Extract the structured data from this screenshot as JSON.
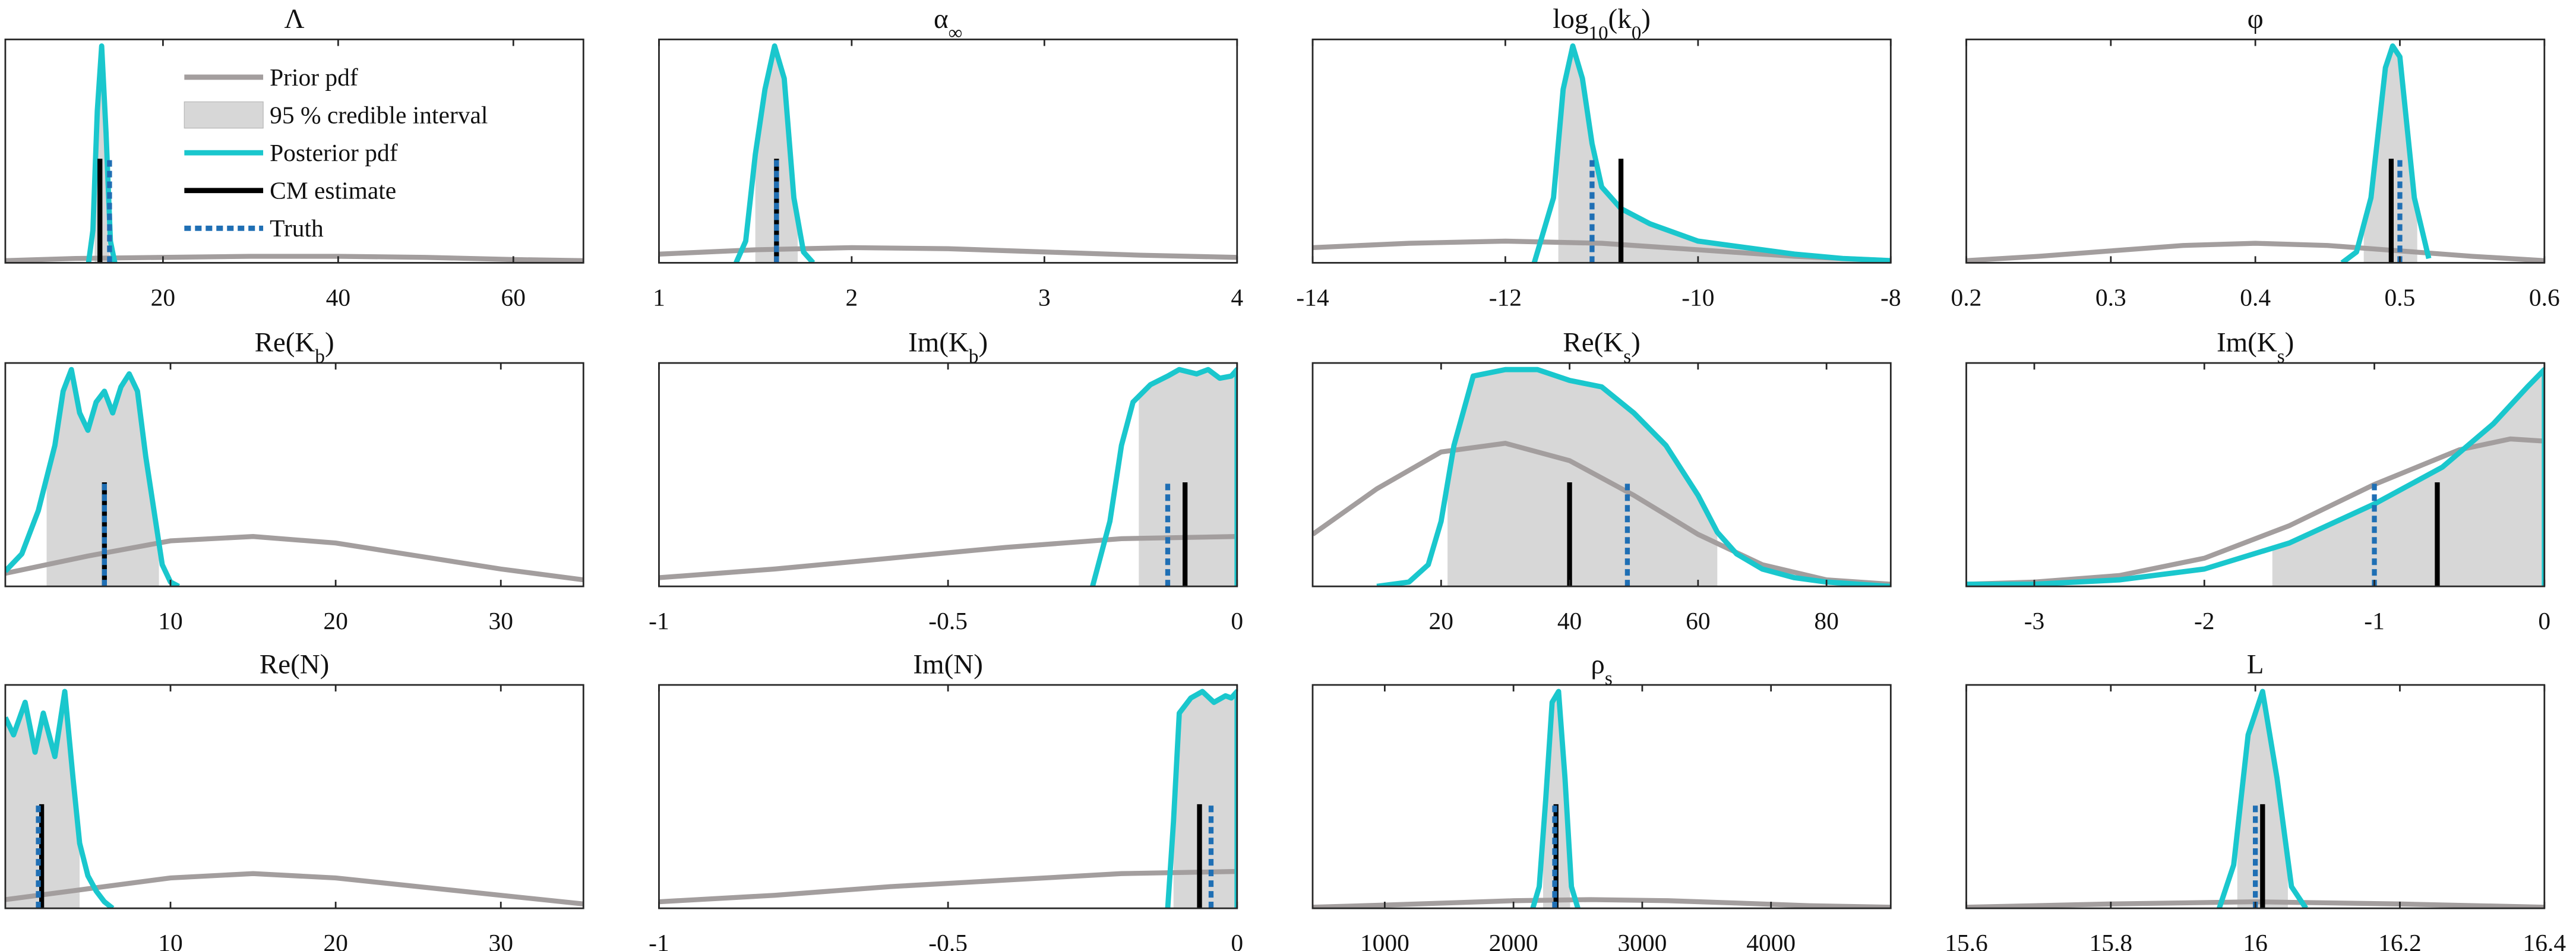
{
  "chart_data": [
    {
      "type": "density",
      "title": [
        {
          "text": "Λ"
        }
      ],
      "xlim": [
        2,
        68
      ],
      "xticks": [
        20,
        40,
        60
      ],
      "ylim": [
        0,
        1
      ],
      "prior": {
        "x": [
          2,
          10,
          20,
          30,
          40,
          50,
          60,
          68
        ],
        "y": [
          0.01,
          0.02,
          0.025,
          0.03,
          0.03,
          0.025,
          0.015,
          0.01
        ]
      },
      "posterior": {
        "x": [
          11.5,
          12,
          12.5,
          13,
          13.5,
          14,
          14.5
        ],
        "y": [
          0,
          0.15,
          0.7,
          1.0,
          0.6,
          0.1,
          0
        ]
      },
      "interval": [
        12.2,
        13.9
      ],
      "cm_estimate": 12.8,
      "truth": 13.9,
      "legend": {
        "prior": {
          "name": "Prior pdf",
          "color": "#a39e9e"
        },
        "interval": {
          "name": "95 % credible interval",
          "color": "#d7d7d7"
        },
        "posterior": {
          "name": "Posterior pdf",
          "color": "#1ac7cd"
        },
        "cm_estimate": {
          "name": "CM estimate",
          "color": "#000000"
        },
        "truth": {
          "name": "Truth",
          "color": "#1f6fb4"
        }
      }
    },
    {
      "type": "density",
      "title": [
        {
          "text": "α"
        },
        {
          "text": "∞",
          "sub": true
        }
      ],
      "xlim": [
        1,
        4
      ],
      "xticks": [
        1,
        2,
        3,
        4
      ],
      "ylim": [
        0,
        1
      ],
      "prior": {
        "x": [
          1,
          1.5,
          2,
          2.5,
          3,
          3.5,
          4
        ],
        "y": [
          0.04,
          0.06,
          0.07,
          0.065,
          0.05,
          0.035,
          0.025
        ]
      },
      "posterior": {
        "x": [
          1.4,
          1.45,
          1.5,
          1.55,
          1.6,
          1.65,
          1.7,
          1.75,
          1.8
        ],
        "y": [
          0,
          0.1,
          0.5,
          0.8,
          1.0,
          0.85,
          0.3,
          0.05,
          0
        ]
      },
      "interval": [
        1.5,
        1.72
      ],
      "cm_estimate": 1.61,
      "truth": 1.61
    },
    {
      "type": "density",
      "title": [
        {
          "text": "log"
        },
        {
          "text": "10",
          "sub": true
        },
        {
          "text": "(k"
        },
        {
          "text": "0",
          "sub": true
        },
        {
          "text": ")"
        }
      ],
      "xlim": [
        -14,
        -8
      ],
      "xticks": [
        -14,
        -12,
        -10,
        -8
      ],
      "ylim": [
        0,
        1
      ],
      "prior": {
        "x": [
          -14,
          -13,
          -12,
          -11,
          -10,
          -9,
          -8
        ],
        "y": [
          0.07,
          0.09,
          0.1,
          0.09,
          0.06,
          0.03,
          0.01
        ]
      },
      "posterior": {
        "x": [
          -11.7,
          -11.5,
          -11.4,
          -11.3,
          -11.2,
          -11.1,
          -11,
          -10.8,
          -10.5,
          -10,
          -9.5,
          -9,
          -8.5,
          -8
        ],
        "y": [
          0,
          0.3,
          0.8,
          1.0,
          0.85,
          0.55,
          0.35,
          0.25,
          0.18,
          0.1,
          0.07,
          0.04,
          0.02,
          0.01
        ]
      },
      "interval": [
        -11.45,
        -8.3
      ],
      "cm_estimate": -10.8,
      "truth": -11.1
    },
    {
      "type": "density",
      "title": [
        {
          "text": "φ"
        }
      ],
      "xlim": [
        0.2,
        0.6
      ],
      "xticks": [
        0.2,
        0.3,
        0.4,
        0.5,
        0.6
      ],
      "ylim": [
        0,
        1
      ],
      "prior": {
        "x": [
          0.2,
          0.25,
          0.3,
          0.35,
          0.4,
          0.45,
          0.5,
          0.55,
          0.6
        ],
        "y": [
          0.01,
          0.03,
          0.055,
          0.08,
          0.09,
          0.08,
          0.055,
          0.03,
          0.01
        ]
      },
      "posterior": {
        "x": [
          0.46,
          0.47,
          0.48,
          0.49,
          0.495,
          0.5,
          0.51,
          0.52
        ],
        "y": [
          0,
          0.05,
          0.3,
          0.9,
          1.0,
          0.95,
          0.3,
          0.02
        ]
      },
      "interval": [
        0.475,
        0.512
      ],
      "cm_estimate": 0.494,
      "truth": 0.5
    },
    {
      "type": "density",
      "title": [
        {
          "text": "Re(K"
        },
        {
          "text": "b",
          "sub": true
        },
        {
          "text": ")"
        }
      ],
      "xlim": [
        0,
        35
      ],
      "xticks": [
        10,
        20,
        30
      ],
      "ylim": [
        0,
        1
      ],
      "prior": {
        "x": [
          0,
          5,
          10,
          15,
          20,
          25,
          30,
          35
        ],
        "y": [
          0.06,
          0.14,
          0.21,
          0.23,
          0.2,
          0.14,
          0.08,
          0.03
        ]
      },
      "posterior": {
        "x": [
          0,
          1,
          2,
          3,
          3.5,
          4,
          4.5,
          5,
          5.5,
          6,
          6.5,
          7,
          7.5,
          8,
          8.5,
          9,
          9.5,
          10,
          10.5
        ],
        "y": [
          0.07,
          0.15,
          0.35,
          0.65,
          0.9,
          1.0,
          0.8,
          0.72,
          0.85,
          0.9,
          0.8,
          0.92,
          0.98,
          0.9,
          0.6,
          0.35,
          0.1,
          0.02,
          0
        ]
      },
      "interval": [
        2.5,
        9.3
      ],
      "cm_estimate": 6,
      "truth": 6
    },
    {
      "type": "density",
      "title": [
        {
          "text": "Im(K"
        },
        {
          "text": "b",
          "sub": true
        },
        {
          "text": ")"
        }
      ],
      "xlim": [
        -1,
        0
      ],
      "xticks": [
        -1,
        -0.5,
        0
      ],
      "ylim": [
        0,
        1
      ],
      "prior": {
        "x": [
          -1,
          -0.8,
          -0.6,
          -0.4,
          -0.2,
          0
        ],
        "y": [
          0.04,
          0.08,
          0.13,
          0.18,
          0.22,
          0.23
        ]
      },
      "posterior": {
        "x": [
          -0.25,
          -0.22,
          -0.2,
          -0.18,
          -0.15,
          -0.12,
          -0.1,
          -0.07,
          -0.05,
          -0.03,
          -0.01,
          0,
          0
        ],
        "y": [
          0,
          0.3,
          0.65,
          0.85,
          0.93,
          0.97,
          1.0,
          0.98,
          1.0,
          0.96,
          0.97,
          1.0,
          0
        ]
      },
      "interval": [
        -0.17,
        0
      ],
      "cm_estimate": -0.09,
      "truth": -0.12
    },
    {
      "type": "density",
      "title": [
        {
          "text": "Re(K"
        },
        {
          "text": "s",
          "sub": true
        },
        {
          "text": ")"
        }
      ],
      "xlim": [
        0,
        90
      ],
      "xticks": [
        20,
        40,
        60,
        80
      ],
      "ylim": [
        0,
        1
      ],
      "prior": {
        "x": [
          0,
          10,
          20,
          30,
          40,
          50,
          60,
          70,
          80,
          90
        ],
        "y": [
          0.24,
          0.45,
          0.62,
          0.66,
          0.58,
          0.42,
          0.24,
          0.1,
          0.03,
          0.01
        ]
      },
      "posterior": {
        "x": [
          10,
          15,
          18,
          20,
          22,
          25,
          30,
          35,
          40,
          45,
          50,
          55,
          60,
          63,
          66,
          70,
          75,
          80,
          85,
          90
        ],
        "y": [
          0,
          0.02,
          0.1,
          0.3,
          0.65,
          0.97,
          1.0,
          1.0,
          0.95,
          0.92,
          0.8,
          0.65,
          0.42,
          0.25,
          0.15,
          0.08,
          0.04,
          0.02,
          0.01,
          0
        ]
      },
      "interval": [
        21,
        63
      ],
      "cm_estimate": 40,
      "truth": 49
    },
    {
      "type": "density",
      "title": [
        {
          "text": "Im(K"
        },
        {
          "text": "s",
          "sub": true
        },
        {
          "text": ")"
        }
      ],
      "xlim": [
        -3.4,
        0
      ],
      "xticks": [
        -3,
        -2,
        -1,
        0
      ],
      "ylim": [
        0,
        1
      ],
      "prior": {
        "x": [
          -3.4,
          -3,
          -2.5,
          -2,
          -1.5,
          -1,
          -0.5,
          -0.2,
          0
        ],
        "y": [
          0.01,
          0.02,
          0.05,
          0.13,
          0.28,
          0.47,
          0.63,
          0.68,
          0.67
        ]
      },
      "posterior": {
        "x": [
          -3.4,
          -3,
          -2.5,
          -2,
          -1.5,
          -1,
          -0.6,
          -0.3,
          -0.1,
          0,
          0
        ],
        "y": [
          0.01,
          0.01,
          0.03,
          0.08,
          0.2,
          0.38,
          0.55,
          0.75,
          0.92,
          1.0,
          0
        ]
      },
      "interval": [
        -1.6,
        0
      ],
      "cm_estimate": -0.63,
      "truth": -1
    },
    {
      "type": "density",
      "title": [
        {
          "text": "Re(N)"
        }
      ],
      "xlim": [
        0,
        35
      ],
      "xticks": [
        10,
        20,
        30
      ],
      "ylim": [
        0,
        1
      ],
      "prior": {
        "x": [
          0,
          5,
          10,
          15,
          20,
          25,
          30,
          35
        ],
        "y": [
          0.04,
          0.09,
          0.14,
          0.16,
          0.14,
          0.1,
          0.06,
          0.02
        ]
      },
      "posterior": {
        "x": [
          0,
          0.5,
          1.2,
          1.8,
          2.3,
          3,
          3.6,
          4.1,
          4.5,
          5,
          5.5,
          6,
          6.5
        ],
        "y": [
          0.88,
          0.8,
          0.95,
          0.72,
          0.9,
          0.7,
          1.0,
          0.6,
          0.3,
          0.15,
          0.08,
          0.03,
          0
        ]
      },
      "interval": [
        0,
        4.5
      ],
      "cm_estimate": 2.2,
      "truth": 2.0
    },
    {
      "type": "density",
      "title": [
        {
          "text": "Im(N)"
        }
      ],
      "xlim": [
        -1,
        0
      ],
      "xticks": [
        -1,
        -0.5,
        0
      ],
      "ylim": [
        0,
        1
      ],
      "prior": {
        "x": [
          -1,
          -0.8,
          -0.6,
          -0.4,
          -0.2,
          0
        ],
        "y": [
          0.03,
          0.06,
          0.1,
          0.13,
          0.16,
          0.17
        ]
      },
      "posterior": {
        "x": [
          -0.12,
          -0.11,
          -0.1,
          -0.08,
          -0.06,
          -0.04,
          -0.02,
          -0.01,
          0,
          0
        ],
        "y": [
          0,
          0.4,
          0.9,
          0.97,
          1.0,
          0.95,
          0.98,
          0.97,
          1.0,
          0
        ]
      },
      "interval": [
        -0.11,
        0
      ],
      "cm_estimate": -0.065,
      "truth": -0.045
    },
    {
      "type": "density",
      "title": [
        {
          "text": "ρ"
        },
        {
          "text": "s",
          "sub": true
        }
      ],
      "xlim": [
        440,
        4930
      ],
      "xticks": [
        1000,
        2000,
        3000,
        4000
      ],
      "ylim": [
        0,
        1
      ],
      "prior": {
        "x": [
          440,
          1000,
          1500,
          2000,
          2600,
          3200,
          3700,
          4300,
          4930
        ],
        "y": [
          0.005,
          0.015,
          0.025,
          0.035,
          0.04,
          0.035,
          0.025,
          0.012,
          0.005
        ]
      },
      "posterior": {
        "x": [
          2150,
          2200,
          2250,
          2300,
          2350,
          2400,
          2450,
          2500
        ],
        "y": [
          0,
          0.1,
          0.5,
          0.95,
          1.0,
          0.6,
          0.1,
          0
        ]
      },
      "interval": [
        2230,
        2440
      ],
      "cm_estimate": 2330,
      "truth": 2320
    },
    {
      "type": "density",
      "title": [
        {
          "text": "L"
        }
      ],
      "xlim": [
        15.6,
        16.4
      ],
      "xticks": [
        15.6,
        15.8,
        16,
        16.2,
        16.4
      ],
      "ylim": [
        0,
        1
      ],
      "prior": {
        "x": [
          15.6,
          15.8,
          16,
          16.2,
          16.4
        ],
        "y": [
          0.005,
          0.02,
          0.03,
          0.02,
          0.005
        ]
      },
      "posterior": {
        "x": [
          15.95,
          15.97,
          15.99,
          16.01,
          16.03,
          16.05,
          16.07
        ],
        "y": [
          0,
          0.2,
          0.8,
          1.0,
          0.6,
          0.1,
          0
        ]
      },
      "interval": [
        15.975,
        16.045
      ],
      "cm_estimate": 16.01,
      "truth": 16.0
    }
  ]
}
